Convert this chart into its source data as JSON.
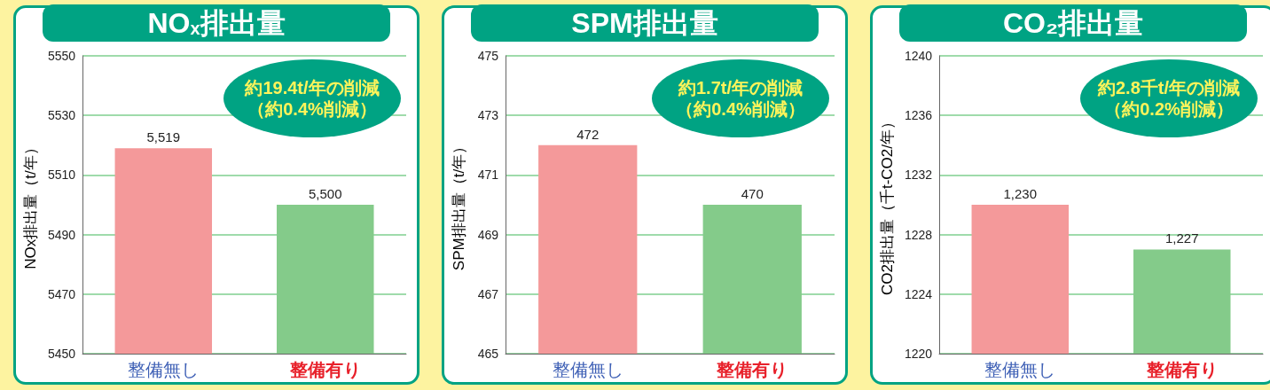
{
  "chart_data": [
    {
      "type": "bar",
      "title": "NO$_{x}$排出量",
      "ylabel": "NOx排出量（t/年）",
      "categories": [
        "整備無し",
        "整備有り"
      ],
      "values": [
        5519,
        5500
      ],
      "colors": [
        "#f4999a",
        "#84cb8a"
      ],
      "value_labels": [
        "5,519",
        "5,500"
      ],
      "ylim": [
        5450,
        5550
      ],
      "yticks": [
        5450,
        5470,
        5490,
        5510,
        5530,
        5550
      ],
      "grid": "y",
      "annotations": [
        "約19.4t/年の削減",
        "（約0.4%削減）"
      ]
    },
    {
      "type": "bar",
      "title": "SPM排出量",
      "ylabel": "SPM排出量（t/年）",
      "categories": [
        "整備無し",
        "整備有り"
      ],
      "values": [
        472,
        470
      ],
      "colors": [
        "#f4999a",
        "#84cb8a"
      ],
      "value_labels": [
        "472",
        "470"
      ],
      "ylim": [
        465,
        475
      ],
      "yticks": [
        465,
        467,
        469,
        471,
        473,
        475
      ],
      "grid": "y",
      "annotations": [
        "約1.7t/年の削減",
        "（約0.4%削減）"
      ]
    },
    {
      "type": "bar",
      "title": "CO₂排出量",
      "ylabel": "CO2排出量（千t-CO2/年）",
      "categories": [
        "整備無し",
        "整備有り"
      ],
      "values": [
        1230,
        1227
      ],
      "colors": [
        "#f4999a",
        "#84cb8a"
      ],
      "value_labels": [
        "1,230",
        "1,227"
      ],
      "ylim": [
        1220,
        1240
      ],
      "yticks": [
        1220,
        1224,
        1228,
        1232,
        1236,
        1240
      ],
      "grid": "y",
      "annotations": [
        "約2.8千t/年の削減",
        "（約0.2%削減）"
      ]
    }
  ]
}
